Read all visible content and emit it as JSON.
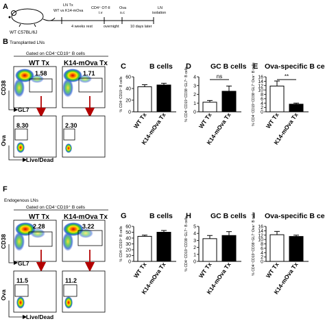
{
  "panel_A": {
    "letter": "A",
    "mouse_label": "WT C57BL/6J",
    "step1_line1": "LN Tx",
    "step1_line2": "WT vs K14-mOva",
    "step2_line1": "CD4⁺ OT-II",
    "step2_line2": "i.v",
    "step3_line1": "Ova",
    "step3_line2": "s.c",
    "step4_line1": "LN",
    "step4_line2": "isolation",
    "interval1": "4 weeks rest",
    "interval2": "overnight",
    "interval3": "10 days later"
  },
  "section_B": {
    "letter": "B",
    "title": "Transplanted LNs",
    "gating": "Gated on CD4⁻CD19⁺ B cells",
    "col1": "WT Tx",
    "col2": "K14-mOva Tx",
    "gate_top_1": "1.58",
    "gate_top_2": "1.71",
    "gate_bot_1": "8.30",
    "gate_bot_2": "2.30",
    "axis_cd38": "CD38",
    "axis_gl7": "GL7",
    "axis_ova": "Ova",
    "axis_livedead": "Live/Dead"
  },
  "section_F": {
    "letter": "F",
    "title": "Endogenous LNs",
    "gating": "Gated on CD4⁻CD19⁺ B cells",
    "col1": "WT Tx",
    "col2": "K14-mOva Tx",
    "gate_top_1": "2.28",
    "gate_top_2": "3.22",
    "gate_bot_1": "11.5",
    "gate_bot_2": "11.2",
    "axis_cd38": "CD38",
    "axis_gl7": "GL7",
    "axis_ova": "Ova",
    "axis_livedead": "Live/Dead"
  },
  "chart_data": [
    {
      "id": "C",
      "type": "bar",
      "title": "B cells",
      "ylabel": "% CD4⁻CD19⁺ B cells",
      "categories": [
        "WT Tx",
        "K14-mOva Tx"
      ],
      "values": [
        43,
        46
      ],
      "errors": [
        3.5,
        3
      ],
      "ylim": [
        0,
        60
      ],
      "yticks": [
        0,
        20,
        40,
        60
      ],
      "colors": [
        "#ffffff",
        "#000000"
      ],
      "annotation": ""
    },
    {
      "id": "D",
      "type": "bar",
      "title": "GC B cells",
      "ylabel": "% CD4⁻CD19⁺CD38⁻GL7⁺ B cells",
      "categories": [
        "WT Tx",
        "K14-mOva Tx"
      ],
      "values": [
        1.1,
        2.35
      ],
      "errors": [
        0.2,
        0.6
      ],
      "ylim": [
        0,
        4
      ],
      "yticks": [
        0,
        1,
        2,
        3,
        4
      ],
      "colors": [
        "#ffffff",
        "#000000"
      ],
      "annotation": "ns"
    },
    {
      "id": "E",
      "type": "bar",
      "title": "Ova-specific B cells",
      "ylabel": "% CD4⁻CD19⁺CD38⁺GL7⁻Ova⁺ B cells",
      "categories": [
        "WT Tx",
        "K14-mOva Tx"
      ],
      "values": [
        11.8,
        3.5
      ],
      "errors": [
        2.3,
        0.5
      ],
      "ylim": [
        0,
        16
      ],
      "yticks": [
        0,
        2,
        4,
        6,
        8,
        10,
        12,
        14,
        16
      ],
      "colors": [
        "#ffffff",
        "#000000"
      ],
      "annotation": "**"
    },
    {
      "id": "G",
      "type": "bar",
      "title": "B cells",
      "ylabel": "% CD4⁻CD19⁺ B cells",
      "categories": [
        "WT Tx",
        "K14-mOva Tx"
      ],
      "values": [
        43,
        50
      ],
      "errors": [
        2,
        3
      ],
      "ylim": [
        0,
        60
      ],
      "yticks": [
        0,
        10,
        20,
        30,
        40,
        50,
        60
      ],
      "colors": [
        "#ffffff",
        "#000000"
      ],
      "annotation": ""
    },
    {
      "id": "H",
      "type": "bar",
      "title": "GC B cells",
      "ylabel": "% CD4⁻CD19⁺CD38⁻GL7⁺ B cells",
      "categories": [
        "WT Tx",
        "K14-mOva Tx"
      ],
      "values": [
        3.25,
        3.7
      ],
      "errors": [
        0.45,
        0.55
      ],
      "ylim": [
        0,
        5
      ],
      "yticks": [
        0,
        1,
        2,
        3,
        4,
        5
      ],
      "colors": [
        "#ffffff",
        "#000000"
      ],
      "annotation": ""
    },
    {
      "id": "I",
      "type": "bar",
      "title": "Ova-specific B cells",
      "ylabel": "% CD4⁻CD19⁺CD38⁺GL7⁻Ova⁺ B cells",
      "categories": [
        "WT Tx",
        "K14-mOva Tx"
      ],
      "values": [
        12.2,
        11.4
      ],
      "errors": [
        1.5,
        0.6
      ],
      "ylim": [
        0,
        16
      ],
      "yticks": [
        0,
        2,
        4,
        6,
        8,
        10,
        12,
        14,
        16
      ],
      "colors": [
        "#ffffff",
        "#000000"
      ],
      "annotation": ""
    }
  ]
}
